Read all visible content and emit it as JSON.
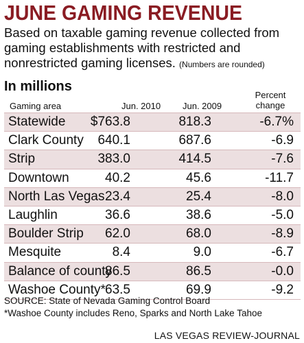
{
  "chart_data": {
    "type": "table",
    "title": "JUNE GAMING REVENUE",
    "subtitle": "Based on taxable gaming revenue collected from gaming establishments with restricted and nonrestricted gaming licenses.",
    "note": "(Numbers are rounded)",
    "unit": "In millions",
    "columns": [
      "Gaming area",
      "Jun. 2010",
      "Jun. 2009",
      "Percent change"
    ],
    "rows": [
      {
        "area": "Statewide",
        "jun2010": "$763.8",
        "jun2009": "818.3",
        "change": "-6.7%"
      },
      {
        "area": "Clark County",
        "jun2010": "640.1",
        "jun2009": "687.6",
        "change": "-6.9"
      },
      {
        "area": "Strip",
        "jun2010": "383.0",
        "jun2009": "414.5",
        "change": "-7.6"
      },
      {
        "area": "Downtown",
        "jun2010": "40.2",
        "jun2009": "45.6",
        "change": "-11.7"
      },
      {
        "area": "North Las Vegas",
        "jun2010": "23.4",
        "jun2009": "25.4",
        "change": "-8.0"
      },
      {
        "area": "Laughlin",
        "jun2010": "36.6",
        "jun2009": "38.6",
        "change": "-5.0"
      },
      {
        "area": "Boulder Strip",
        "jun2010": "62.0",
        "jun2009": "68.0",
        "change": "-8.9"
      },
      {
        "area": "Mesquite",
        "jun2010": "8.4",
        "jun2009": "9.0",
        "change": "-6.7"
      },
      {
        "area": "Balance of county",
        "jun2010": "86.5",
        "jun2009": "86.5",
        "change": "-0.0"
      },
      {
        "area": "Washoe County*",
        "jun2010": "63.5",
        "jun2009": "69.9",
        "change": "-9.2"
      }
    ],
    "source": "SOURCE: State of Nevada Gaming Control Board",
    "footnote": "*Washoe County includes Reno, Sparks and North Lake Tahoe",
    "credit": "LAS VEGAS REVIEW-JOURNAL"
  },
  "colors": {
    "title": "#8a1c23",
    "row_shade": "#ecdfe0",
    "rule": "#d6b8bb"
  }
}
